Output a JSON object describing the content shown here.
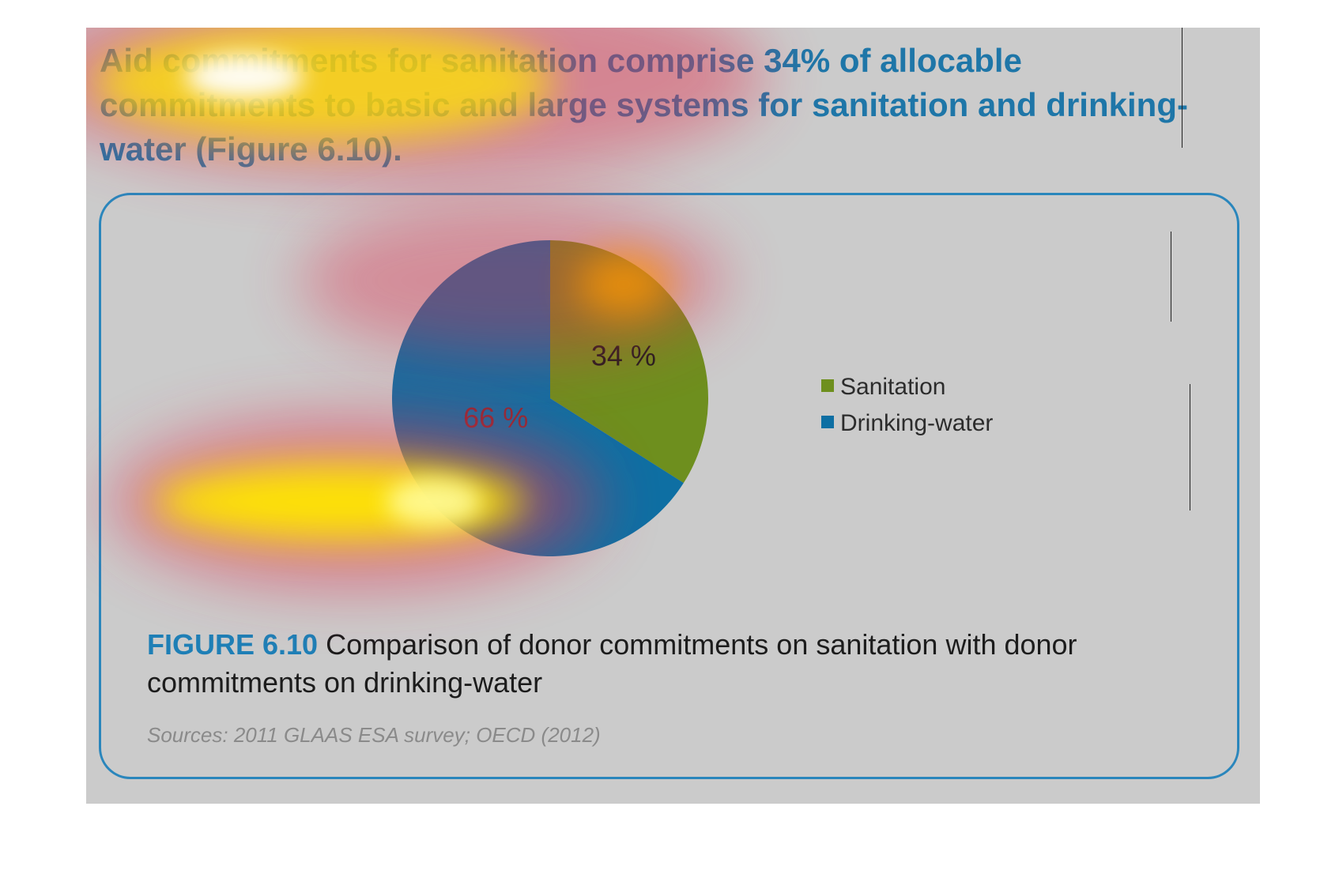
{
  "intro_text": "Aid commitments for sanitation comprise 34% of allocable commitments to basic and large systems for sanitation and drinking-water (Figure 6.10).",
  "colors": {
    "panel_background": "#cbcbcb",
    "accent_blue": "#1e7fb6",
    "box_border": "#2a86bc"
  },
  "chart_data": {
    "type": "pie",
    "categories": [
      "Sanitation",
      "Drinking-water"
    ],
    "values": [
      34,
      66
    ],
    "data_labels": [
      "34 %",
      "66 %"
    ],
    "colors": [
      "#6e8f1e",
      "#0e6fa3"
    ],
    "legend_position": "right"
  },
  "caption": {
    "label": "FIGURE 6.10",
    "text": " Comparison of donor commitments on sanitation with donor commitments on drinking-water"
  },
  "source": "Sources: 2011 GLAAS ESA survey; OECD (2012)"
}
